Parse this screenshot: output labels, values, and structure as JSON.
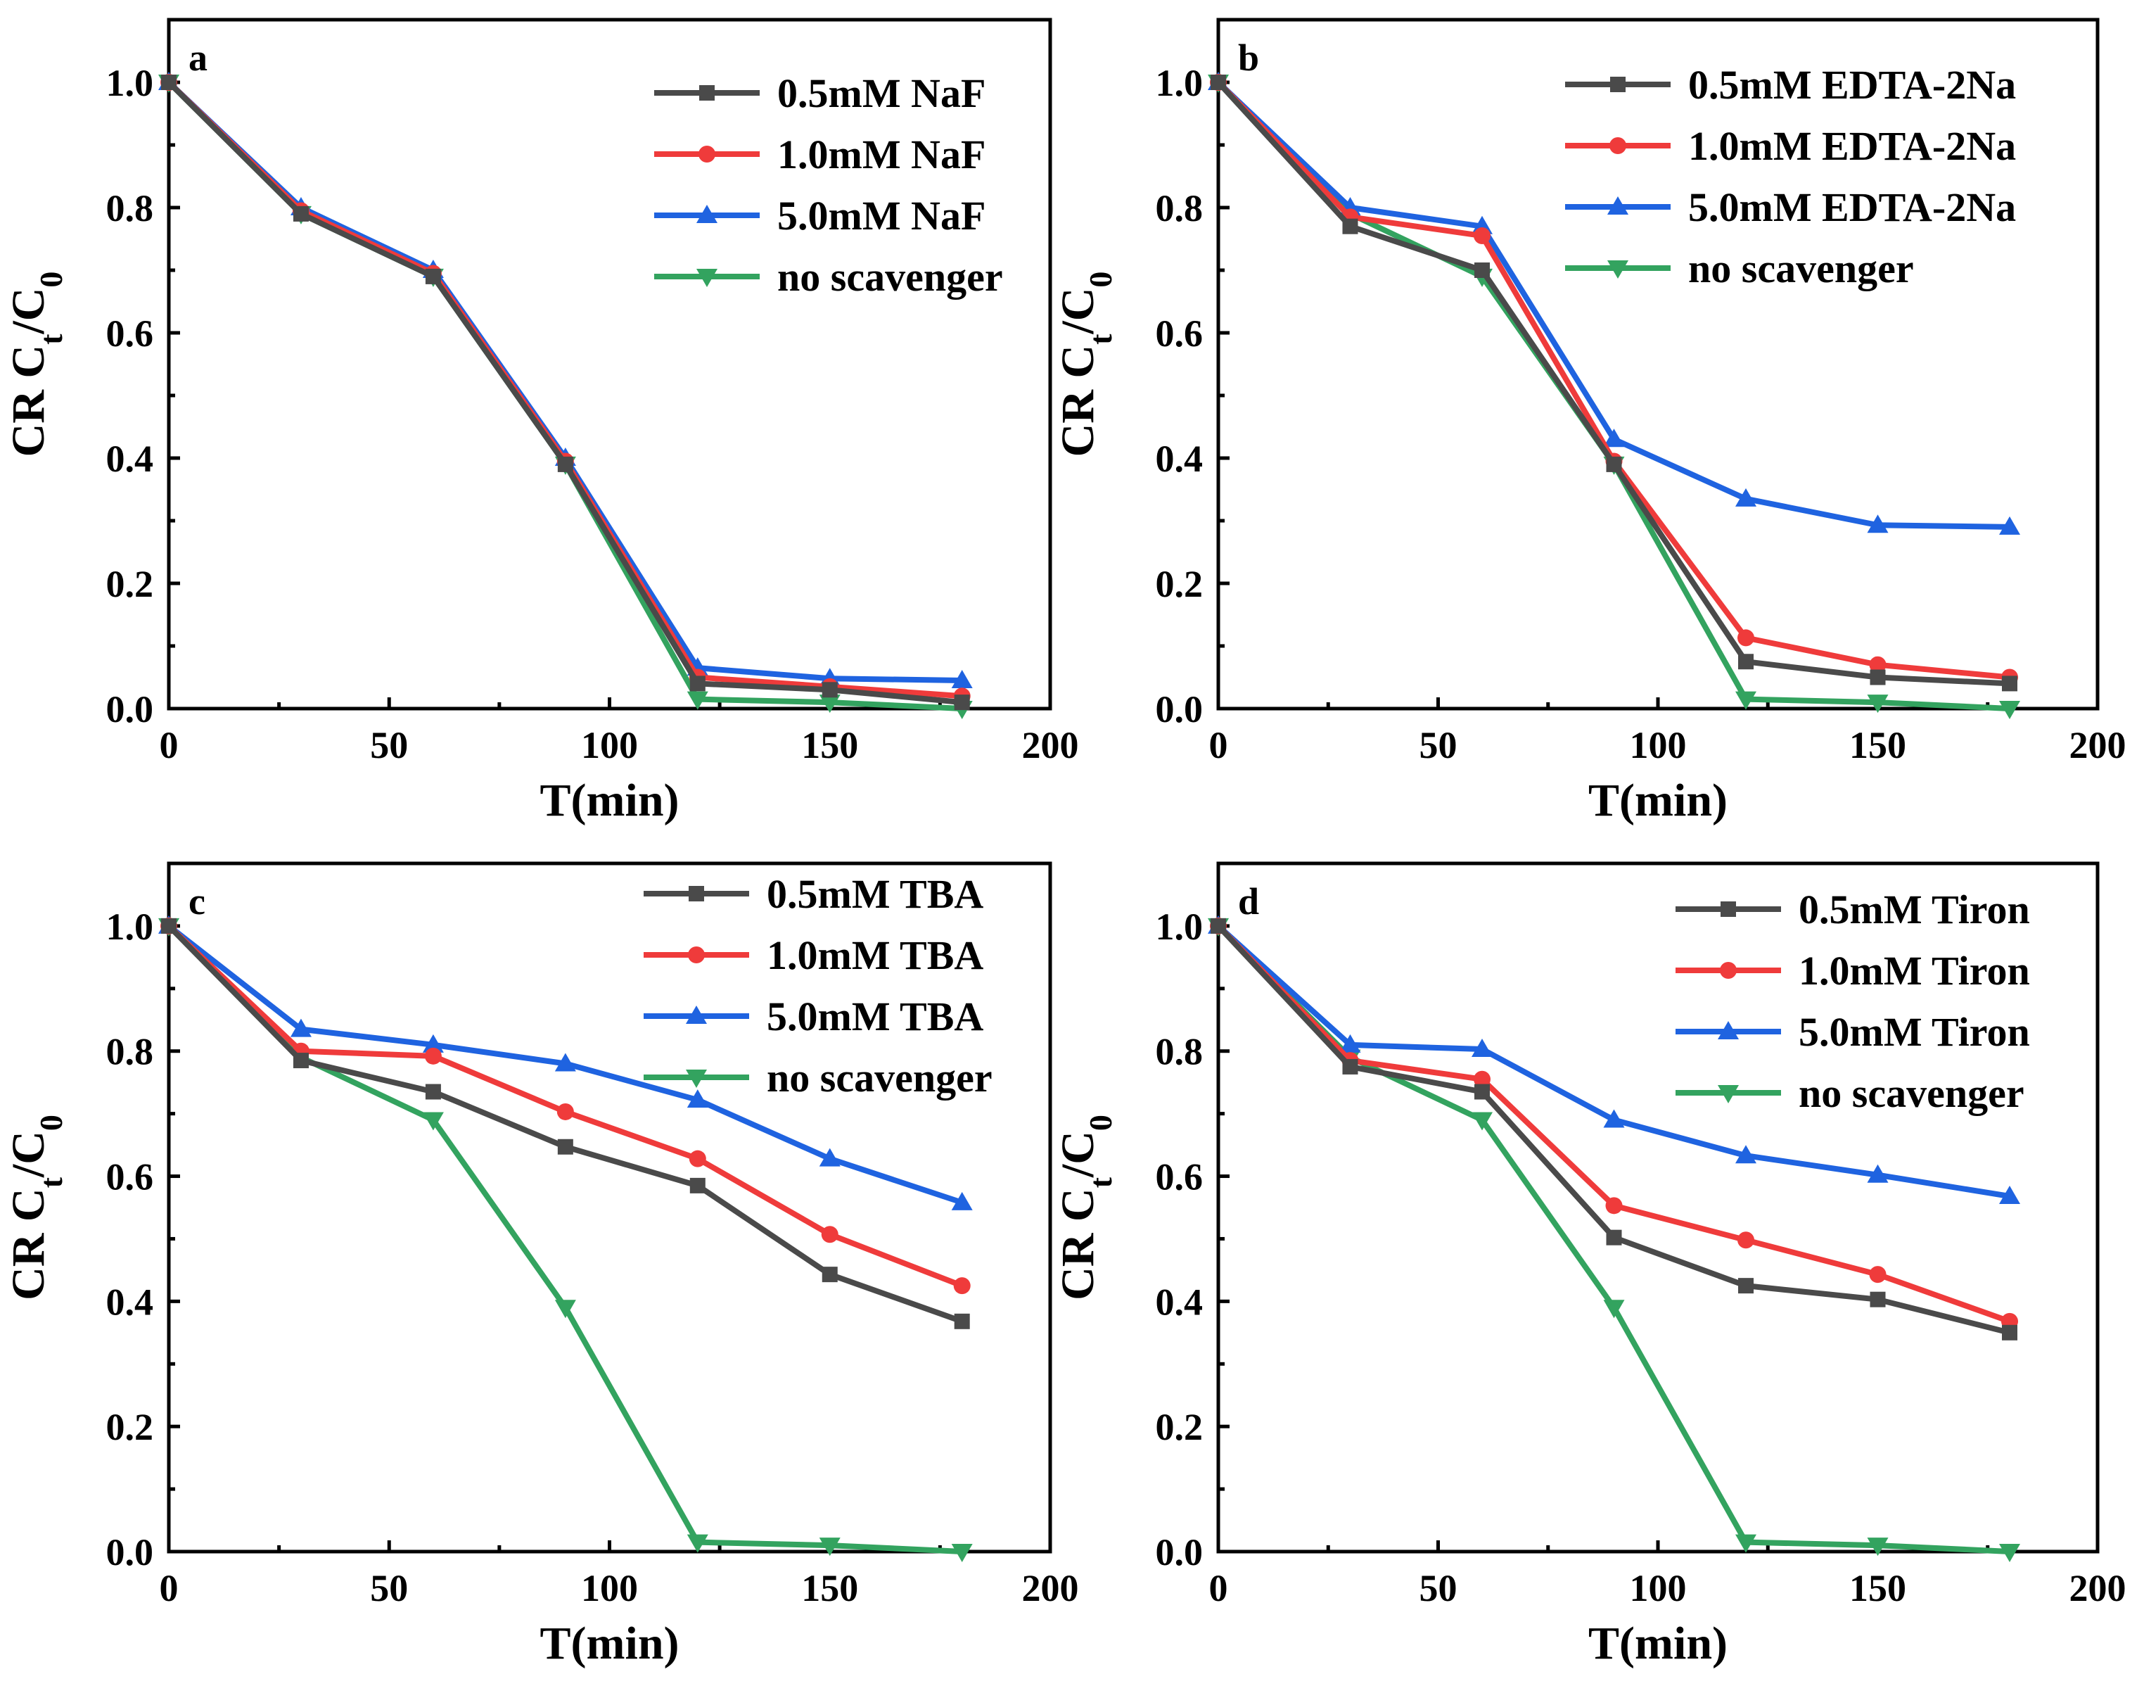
{
  "colors": {
    "series": [
      "#4a4a4a",
      "#ef3b3b",
      "#1f63e0",
      "#33a35f"
    ],
    "axis": "#000000",
    "background": "#ffffff"
  },
  "markers": [
    "square",
    "circle",
    "triangle-up",
    "triangle-down"
  ],
  "chart_data": [
    {
      "type": "line",
      "panel_label": "a",
      "xlabel": "T(min)",
      "ylabel": "CR C_t/C_0",
      "xlim": [
        0,
        200
      ],
      "ylim": [
        0,
        1.1
      ],
      "x_ticks": [
        "0",
        "50",
        "100",
        "150",
        "200"
      ],
      "y_ticks": [
        "0.0",
        "0.2",
        "0.4",
        "0.6",
        "0.8",
        "1.0"
      ],
      "grid": false,
      "legend_position": "top-right",
      "x": [
        0,
        30,
        60,
        90,
        120,
        150,
        180
      ],
      "series": [
        {
          "name": "0.5mM NaF",
          "values": [
            1.0,
            0.79,
            0.69,
            0.39,
            0.04,
            0.03,
            0.01
          ]
        },
        {
          "name": "1.0mM NaF",
          "values": [
            1.0,
            0.795,
            0.695,
            0.395,
            0.05,
            0.035,
            0.02
          ]
        },
        {
          "name": "5.0mM NaF",
          "values": [
            1.0,
            0.8,
            0.7,
            0.4,
            0.065,
            0.048,
            0.045
          ]
        },
        {
          "name": "no scavenger",
          "values": [
            1.0,
            0.79,
            0.69,
            0.39,
            0.015,
            0.01,
            0.0
          ]
        }
      ]
    },
    {
      "type": "line",
      "panel_label": "b",
      "xlabel": "T(min)",
      "ylabel": "CR C_t/C_0",
      "xlim": [
        0,
        200
      ],
      "ylim": [
        0,
        1.1
      ],
      "x_ticks": [
        "0",
        "50",
        "100",
        "150",
        "200"
      ],
      "y_ticks": [
        "0.0",
        "0.2",
        "0.4",
        "0.6",
        "0.8",
        "1.0"
      ],
      "grid": false,
      "legend_position": "top-right",
      "x": [
        0,
        30,
        60,
        90,
        120,
        150,
        180
      ],
      "series": [
        {
          "name": "0.5mM EDTA-2Na",
          "values": [
            1.0,
            0.77,
            0.7,
            0.39,
            0.075,
            0.05,
            0.04
          ]
        },
        {
          "name": "1.0mM EDTA-2Na",
          "values": [
            1.0,
            0.785,
            0.755,
            0.395,
            0.113,
            0.07,
            0.05
          ]
        },
        {
          "name": "5.0mM EDTA-2Na",
          "values": [
            1.0,
            0.8,
            0.77,
            0.43,
            0.335,
            0.293,
            0.29
          ]
        },
        {
          "name": "no scavenger",
          "values": [
            1.0,
            0.79,
            0.69,
            0.39,
            0.015,
            0.01,
            0.0
          ]
        }
      ]
    },
    {
      "type": "line",
      "panel_label": "c",
      "xlabel": "T(min)",
      "ylabel": "CR C_t/C_0",
      "xlim": [
        0,
        200
      ],
      "ylim": [
        0,
        1.1
      ],
      "x_ticks": [
        "0",
        "50",
        "100",
        "150",
        "200"
      ],
      "y_ticks": [
        "0.0",
        "0.2",
        "0.4",
        "0.6",
        "0.8",
        "1.0"
      ],
      "grid": false,
      "legend_position": "top-right",
      "x": [
        0,
        30,
        60,
        90,
        120,
        150,
        180
      ],
      "series": [
        {
          "name": "0.5mM TBA",
          "values": [
            1.0,
            0.785,
            0.735,
            0.647,
            0.585,
            0.443,
            0.368
          ]
        },
        {
          "name": "1.0mM TBA",
          "values": [
            1.0,
            0.8,
            0.792,
            0.703,
            0.628,
            0.507,
            0.425
          ]
        },
        {
          "name": "5.0mM TBA",
          "values": [
            1.0,
            0.835,
            0.81,
            0.78,
            0.722,
            0.628,
            0.558
          ]
        },
        {
          "name": "no scavenger",
          "values": [
            1.0,
            0.79,
            0.69,
            0.39,
            0.015,
            0.01,
            0.0
          ]
        }
      ]
    },
    {
      "type": "line",
      "panel_label": "d",
      "xlabel": "T(min)",
      "ylabel": "CR C_t/C_0",
      "xlim": [
        0,
        200
      ],
      "ylim": [
        0,
        1.1
      ],
      "x_ticks": [
        "0",
        "50",
        "100",
        "150",
        "200"
      ],
      "y_ticks": [
        "0.0",
        "0.2",
        "0.4",
        "0.6",
        "0.8",
        "1.0"
      ],
      "grid": false,
      "legend_position": "top-right",
      "x": [
        0,
        30,
        60,
        90,
        120,
        150,
        180
      ],
      "series": [
        {
          "name": "0.5mM Tiron",
          "values": [
            1.0,
            0.775,
            0.735,
            0.502,
            0.425,
            0.403,
            0.35
          ]
        },
        {
          "name": "1.0mM Tiron",
          "values": [
            1.0,
            0.785,
            0.755,
            0.553,
            0.498,
            0.443,
            0.368
          ]
        },
        {
          "name": "5.0mM Tiron",
          "values": [
            1.0,
            0.81,
            0.803,
            0.69,
            0.633,
            0.602,
            0.568
          ]
        },
        {
          "name": "no scavenger",
          "values": [
            1.0,
            0.79,
            0.69,
            0.39,
            0.015,
            0.01,
            0.0
          ]
        }
      ]
    }
  ]
}
